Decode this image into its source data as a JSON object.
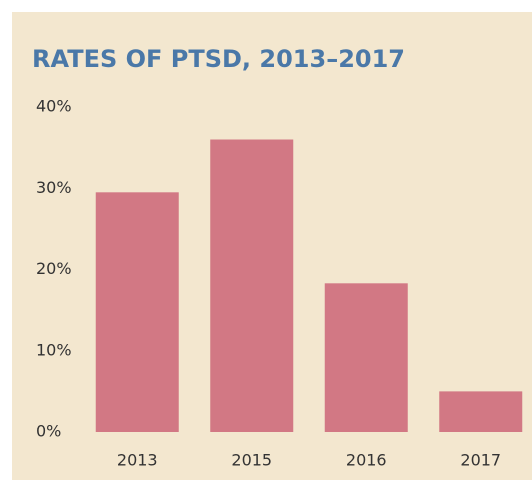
{
  "chart_data": {
    "type": "bar",
    "title": "RATES OF PTSD, 2013–2017",
    "categories": [
      "2013",
      "2015",
      "2016",
      "2017"
    ],
    "values": [
      29.5,
      36,
      18.3,
      5
    ],
    "color": "#d27884",
    "ylim": [
      0,
      40
    ],
    "yticks": [
      {
        "value": 0,
        "label": "0%"
      },
      {
        "value": 10,
        "label": "10%"
      },
      {
        "value": 20,
        "label": "20%"
      },
      {
        "value": 30,
        "label": "30%"
      },
      {
        "value": 40,
        "label": "40%"
      }
    ],
    "grid": false
  }
}
